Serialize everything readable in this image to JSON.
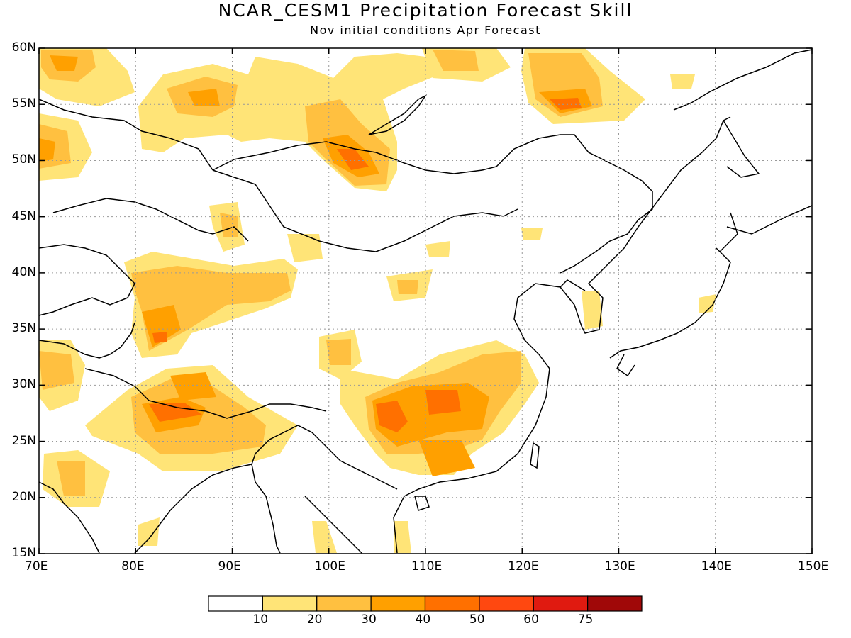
{
  "title": "NCAR_CESM1 Precipitation Forecast Skill",
  "subtitle": "Nov initial conditions  Apr Forecast",
  "axes": {
    "lat_labels": [
      "15N",
      "20N",
      "25N",
      "30N",
      "35N",
      "40N",
      "45N",
      "50N",
      "55N",
      "60N"
    ],
    "lon_labels": [
      "70E",
      "80E",
      "90E",
      "100E",
      "110E",
      "120E",
      "130E",
      "140E",
      "150E"
    ]
  },
  "colorbar": {
    "tick_labels": [
      "10",
      "20",
      "30",
      "40",
      "50",
      "60",
      "75"
    ],
    "colors": [
      "#ffffff",
      "#ffe477",
      "#ffc040",
      "#ffa000",
      "#ff7000",
      "#ff4810",
      "#e01a10",
      "#a00808"
    ]
  }
}
